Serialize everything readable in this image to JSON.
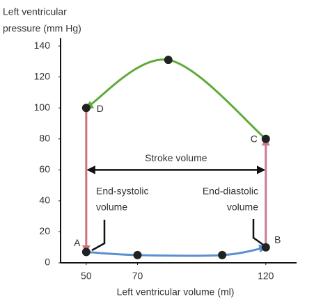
{
  "chart_data": {
    "type": "pv-loop",
    "y_label": [
      "Left ventricular",
      "pressure (mm Hg)"
    ],
    "x_label": "Left ventricular volume (ml)",
    "xlim": [
      40,
      132
    ],
    "ylim": [
      0,
      145
    ],
    "xticks": [
      50,
      70,
      120
    ],
    "yticks": [
      0,
      20,
      40,
      60,
      80,
      100,
      120,
      140
    ],
    "series": [
      {
        "color": "#5b8fd0",
        "markers": true,
        "x": [
          50,
          70,
          103,
          120
        ],
        "values": [
          7,
          5,
          5,
          10
        ]
      },
      {
        "color": "#c97a9a",
        "markers": false,
        "x": [
          120,
          120
        ],
        "values": [
          10,
          80
        ]
      },
      {
        "color": "#5faa3a",
        "markers": true,
        "x": [
          120,
          82,
          50
        ],
        "values": [
          80,
          131,
          100
        ]
      },
      {
        "color": "#d0707a",
        "markers": false,
        "x": [
          50,
          50
        ],
        "values": [
          100,
          7
        ]
      }
    ],
    "point_labels": [
      "A",
      "B",
      "C",
      "D"
    ],
    "stroke_volume": {
      "label": "Stroke volume",
      "x": [
        50,
        120
      ],
      "y": 60
    },
    "end_systolic_label": [
      "End-systolic",
      "volume"
    ],
    "end_diastolic_label": [
      "End-diastolic",
      "volume"
    ]
  }
}
